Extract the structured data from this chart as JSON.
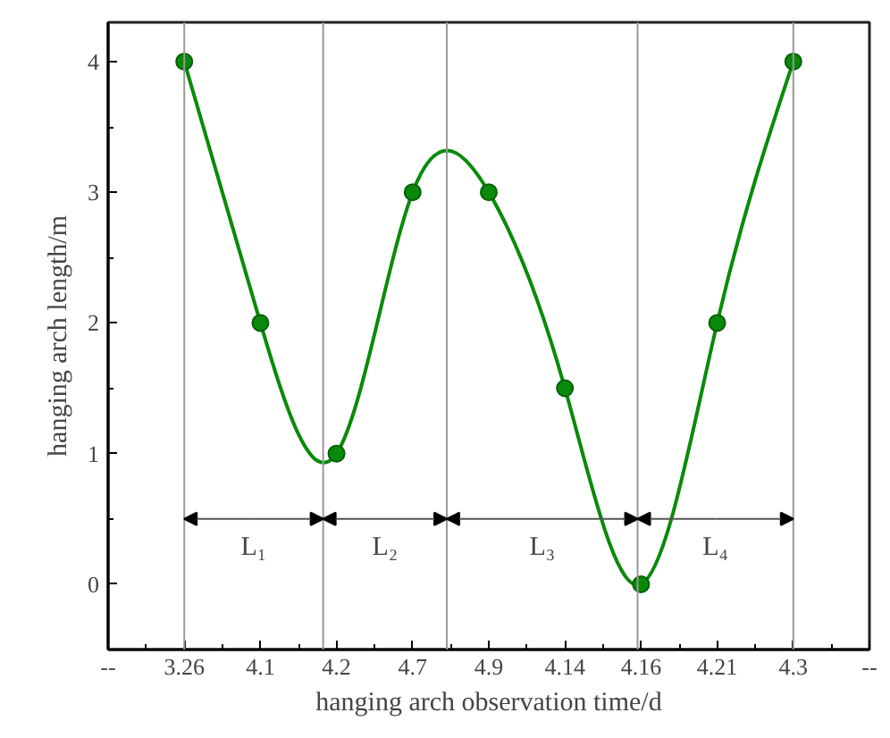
{
  "chart_data": {
    "type": "line",
    "xlabel": "hanging arch observation time/d",
    "ylabel": "hanging arch length/m",
    "categories": [
      "--",
      "3.26",
      "4.1",
      "4.2",
      "4.7",
      "4.9",
      "4.14",
      "4.16",
      "4.21",
      "4.3",
      "--"
    ],
    "ylim": [
      -0.5,
      4.3
    ],
    "yticks": [
      0,
      1,
      2,
      3,
      4
    ],
    "marker": "circle",
    "line_style": "solid",
    "series": [
      {
        "color": "#0a8a0a",
        "values": [
          null,
          4,
          2,
          1,
          3,
          3,
          1.5,
          0,
          2,
          4,
          null
        ]
      }
    ],
    "annotations": [
      "L₁",
      "L₂",
      "L₃",
      "L₄"
    ]
  }
}
